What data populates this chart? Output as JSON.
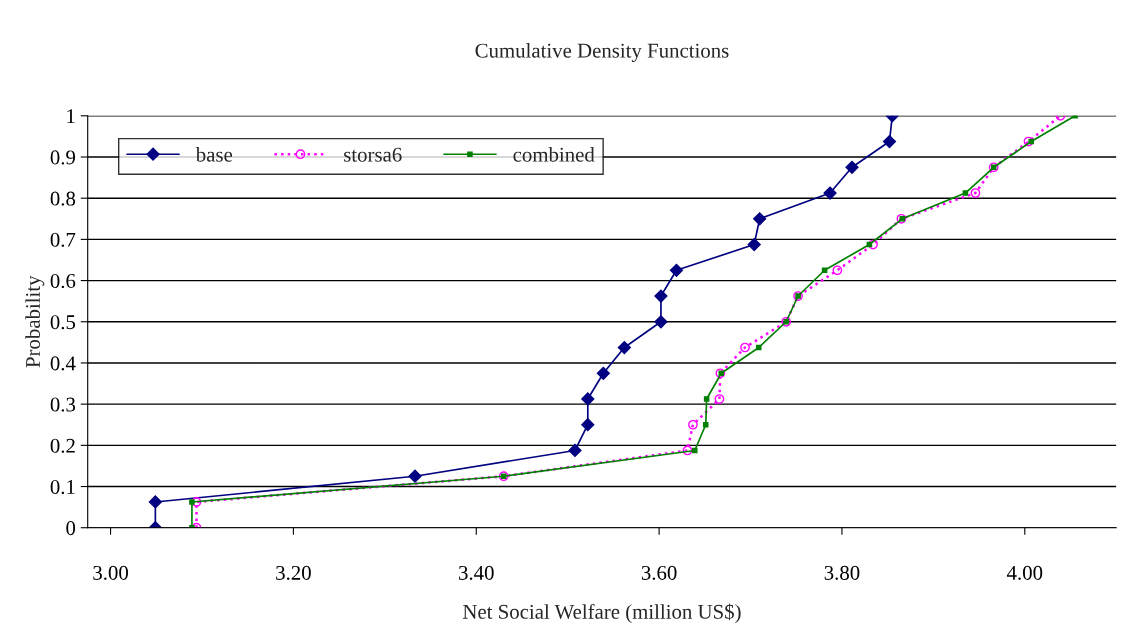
{
  "chart_data": {
    "type": "line",
    "title": "Cumulative Density Functions",
    "xlabel": "Net Social Welfare (million US$)",
    "ylabel": "Probability",
    "xlim": [
      2.975,
      4.1
    ],
    "xticks": [
      {
        "value": 3.0,
        "label": "3.00"
      },
      {
        "value": 3.2,
        "label": "3.20"
      },
      {
        "value": 3.4,
        "label": "3.40"
      },
      {
        "value": 3.6,
        "label": "3.60"
      },
      {
        "value": 3.8,
        "label": "3.80"
      },
      {
        "value": 4.0,
        "label": "4.00"
      }
    ],
    "ylim": [
      0,
      1
    ],
    "yticks": [
      0,
      0.1,
      0.2,
      0.3,
      0.4,
      0.5,
      0.6,
      0.7,
      0.8,
      0.9,
      1
    ],
    "grid": "y",
    "legend": "top left",
    "series": [
      {
        "name": "base",
        "color": "#000080",
        "marker": "diamond",
        "line_style": "solid",
        "x": [
          3.049,
          3.049,
          3.333,
          3.508,
          3.522,
          3.522,
          3.539,
          3.562,
          3.602,
          3.602,
          3.619,
          3.704,
          3.71,
          3.787,
          3.811,
          3.852,
          3.855
        ],
        "values": [
          0,
          0.0625,
          0.125,
          0.1875,
          0.25,
          0.3125,
          0.375,
          0.4375,
          0.5,
          0.5625,
          0.625,
          0.6875,
          0.75,
          0.8125,
          0.875,
          0.9375,
          1
        ]
      },
      {
        "name": "storsa6",
        "color": "#ff00ff",
        "marker": "circle",
        "line_style": "dotted",
        "x": [
          3.094,
          3.094,
          3.43,
          3.631,
          3.637,
          3.666,
          3.667,
          3.694,
          3.739,
          3.752,
          3.795,
          3.834,
          3.865,
          3.946,
          3.966,
          4.004,
          4.039
        ],
        "values": [
          0,
          0.0625,
          0.125,
          0.1875,
          0.25,
          0.3125,
          0.375,
          0.4375,
          0.5,
          0.5625,
          0.625,
          0.6875,
          0.75,
          0.8125,
          0.875,
          0.9375,
          1
        ]
      },
      {
        "name": "combined",
        "color": "#008000",
        "marker": "square",
        "line_style": "solid",
        "x": [
          3.089,
          3.089,
          3.43,
          3.639,
          3.651,
          3.652,
          3.668,
          3.709,
          3.739,
          3.752,
          3.781,
          3.83,
          3.866,
          3.935,
          3.966,
          4.007,
          4.055
        ],
        "values": [
          0,
          0.0625,
          0.125,
          0.1875,
          0.25,
          0.3125,
          0.375,
          0.4375,
          0.5,
          0.5625,
          0.625,
          0.6875,
          0.75,
          0.8125,
          0.875,
          0.9375,
          1
        ]
      }
    ]
  }
}
